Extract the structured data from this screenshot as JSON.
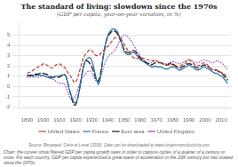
{
  "chart_data": {
    "type": "line",
    "title": "The standard of living: slowdown since the 1970s",
    "subtitle": "(GDP per capita, year-on-year variation, in %)",
    "source": "Source: Bergeaud, Cette et Lecat (2016). Data can be downloaded at www.longtermproductivity.com",
    "caption": "Chart: the curves show filtered GDP per capita growth rates in order to capture cycles of a quarter of a century or more. For each country, GDP per capita experienced a great wave of acceleration in the 20th century but has slowed since the 1970s.",
    "x": [
      1890,
      1891,
      1892,
      1893,
      1894,
      1895,
      1896,
      1897,
      1898,
      1899,
      1900,
      1901,
      1902,
      1903,
      1904,
      1905,
      1906,
      1907,
      1908,
      1909,
      1910,
      1911,
      1912,
      1913,
      1914,
      1915,
      1916,
      1917,
      1918,
      1919,
      1920,
      1921,
      1922,
      1923,
      1924,
      1925,
      1926,
      1927,
      1928,
      1929,
      1930,
      1931,
      1932,
      1933,
      1934,
      1935,
      1936,
      1937,
      1938,
      1939,
      1940,
      1941,
      1942,
      1943,
      1944,
      1945,
      1946,
      1947,
      1948,
      1949,
      1950,
      1951,
      1952,
      1953,
      1954,
      1955,
      1956,
      1957,
      1958,
      1959,
      1960,
      1961,
      1962,
      1963,
      1964,
      1965,
      1966,
      1967,
      1968,
      1969,
      1970,
      1971,
      1972,
      1973,
      1974,
      1975,
      1976,
      1977,
      1978,
      1979,
      1980,
      1981,
      1982,
      1983,
      1984,
      1985,
      1986,
      1987,
      1988,
      1989,
      1990,
      1991,
      1992,
      1993,
      1994,
      1995,
      1996,
      1997,
      1998,
      1999,
      2000,
      2001,
      2002,
      2003,
      2004,
      2005,
      2006,
      2007,
      2008,
      2009,
      2010,
      2011,
      2012,
      2013,
      2014
    ],
    "series": [
      {
        "name": "United States",
        "color": "#c0392b",
        "line_style": "dashed",
        "values": [
          1.3,
          1.35,
          1.4,
          1.5,
          1.6,
          1.7,
          1.8,
          1.9,
          2.0,
          2.1,
          2.2,
          2.2,
          2.1,
          2.0,
          1.9,
          1.8,
          1.8,
          2.0,
          2.1,
          2.2,
          2.2,
          2.1,
          2.0,
          1.9,
          1.7,
          1.4,
          1.2,
          1.0,
          0.7,
          0.4,
          0.4,
          0.7,
          1.2,
          1.8,
          2.4,
          2.8,
          3.1,
          3.3,
          3.5,
          3.6,
          3.5,
          3.3,
          3.1,
          3.0,
          3.0,
          3.1,
          3.3,
          3.5,
          3.6,
          3.8,
          3.9,
          4.1,
          4.3,
          4.5,
          4.7,
          4.8,
          5.0,
          4.9,
          4.7,
          4.4,
          4.1,
          3.8,
          3.6,
          3.3,
          3.1,
          2.9,
          2.8,
          2.7,
          2.7,
          2.8,
          2.8,
          2.8,
          2.7,
          2.7,
          2.6,
          2.6,
          2.6,
          2.5,
          2.5,
          2.6,
          2.5,
          2.4,
          2.3,
          2.3,
          2.2,
          2.1,
          2.1,
          2.1,
          2.1,
          2.2,
          2.1,
          2.0,
          1.9,
          1.9,
          1.9,
          2.0,
          2.1,
          2.2,
          2.3,
          2.5,
          2.6,
          2.5,
          2.4,
          2.2,
          2.1,
          2.0,
          2.0,
          2.1,
          2.2,
          2.3,
          2.3,
          2.2,
          2.0,
          1.8,
          1.7,
          1.6,
          1.6,
          1.6,
          1.5,
          1.4,
          1.4,
          1.3,
          1.2,
          1.0,
          0.8
        ]
      },
      {
        "name": "France",
        "color": "#2471a3",
        "line_style": "solid",
        "values": [
          1.0,
          1.0,
          1.0,
          1.0,
          1.0,
          1.1,
          1.1,
          1.1,
          1.1,
          1.1,
          1.1,
          1.0,
          0.9,
          0.9,
          0.8,
          0.8,
          0.9,
          1.0,
          1.0,
          1.0,
          1.0,
          1.1,
          1.1,
          1.2,
          1.0,
          0.5,
          -0.2,
          -0.7,
          -1.2,
          -1.6,
          -1.6,
          -1.3,
          -0.6,
          0.3,
          1.3,
          2.0,
          2.5,
          2.7,
          2.8,
          2.8,
          2.5,
          2.0,
          1.3,
          0.6,
          0.2,
          0.5,
          1.5,
          2.8,
          3.8,
          4.5,
          5.0,
          5.3,
          5.5,
          5.6,
          5.6,
          5.5,
          5.3,
          4.9,
          4.5,
          3.9,
          3.4,
          3.2,
          3.1,
          3.1,
          3.2,
          3.3,
          3.3,
          3.2,
          3.0,
          2.8,
          2.6,
          2.5,
          2.4,
          2.3,
          2.2,
          2.1,
          2.0,
          1.9,
          1.9,
          2.0,
          1.9,
          1.9,
          1.9,
          1.9,
          1.8,
          1.7,
          1.7,
          1.7,
          1.8,
          1.9,
          1.9,
          1.9,
          1.8,
          1.7,
          1.6,
          1.6,
          1.7,
          1.8,
          1.9,
          2.0,
          2.1,
          2.0,
          1.9,
          1.8,
          1.7,
          1.6,
          1.6,
          1.7,
          1.8,
          1.9,
          1.9,
          1.8,
          1.7,
          1.6,
          1.5,
          1.4,
          1.3,
          1.3,
          1.2,
          1.1,
          1.0,
          0.9,
          0.7,
          0.5,
          0.3
        ]
      },
      {
        "name": "Euro area",
        "color": "#111111",
        "line_style": "longdash",
        "values": [
          1.1,
          1.1,
          1.1,
          1.1,
          1.1,
          1.2,
          1.2,
          1.2,
          1.3,
          1.3,
          1.3,
          1.2,
          1.2,
          1.1,
          1.0,
          0.9,
          0.9,
          0.9,
          0.9,
          0.9,
          0.9,
          1.0,
          1.1,
          1.2,
          1.0,
          0.5,
          -0.2,
          -0.8,
          -1.4,
          -1.8,
          -1.8,
          -1.4,
          -0.7,
          0.2,
          1.2,
          2.0,
          2.5,
          2.5,
          2.4,
          2.2,
          1.9,
          1.5,
          1.0,
          0.6,
          0.5,
          0.9,
          1.8,
          2.8,
          3.7,
          4.4,
          4.9,
          5.1,
          5.3,
          5.4,
          5.4,
          5.3,
          5.1,
          4.8,
          4.4,
          4.0,
          3.6,
          3.4,
          3.3,
          3.3,
          3.4,
          3.5,
          3.5,
          3.4,
          3.2,
          3.0,
          2.8,
          2.6,
          2.5,
          2.4,
          2.3,
          2.2,
          2.2,
          2.1,
          2.2,
          2.3,
          2.3,
          2.3,
          2.3,
          2.3,
          2.2,
          2.1,
          2.1,
          2.1,
          2.2,
          2.3,
          2.2,
          2.1,
          2.0,
          1.9,
          1.8,
          1.8,
          1.9,
          2.0,
          2.1,
          2.2,
          2.2,
          2.2,
          2.1,
          2.0,
          1.9,
          1.8,
          1.8,
          1.9,
          2.0,
          2.1,
          2.1,
          2.0,
          1.9,
          1.8,
          1.7,
          1.6,
          1.6,
          1.6,
          1.5,
          1.4,
          1.3,
          1.2,
          1.0,
          0.8,
          0.6
        ]
      },
      {
        "name": "United Kingdom",
        "color": "#8e44ad",
        "line_style": "dotted",
        "values": [
          0.9,
          0.9,
          0.9,
          0.9,
          0.9,
          0.9,
          0.9,
          0.9,
          0.95,
          1.0,
          1.0,
          1.0,
          1.0,
          1.0,
          0.9,
          0.8,
          0.7,
          0.6,
          0.5,
          0.4,
          0.3,
          0.3,
          0.3,
          0.3,
          0.0,
          -0.5,
          -0.9,
          -1.2,
          -1.3,
          -1.2,
          -0.9,
          -0.5,
          0.0,
          0.5,
          0.8,
          1.0,
          1.2,
          1.4,
          1.5,
          1.5,
          1.3,
          1.0,
          0.7,
          0.5,
          0.5,
          0.8,
          1.2,
          1.7,
          2.2,
          2.6,
          2.9,
          3.1,
          3.2,
          3.3,
          3.5,
          3.7,
          4.0,
          4.4,
          4.7,
          4.9,
          5.0,
          5.0,
          4.9,
          4.7,
          4.5,
          4.3,
          4.0,
          3.7,
          3.4,
          3.2,
          2.9,
          2.7,
          2.5,
          2.4,
          2.3,
          2.3,
          2.3,
          2.3,
          2.4,
          2.5,
          2.5,
          2.4,
          2.4,
          2.3,
          2.3,
          2.2,
          2.2,
          2.2,
          2.3,
          2.4,
          2.4,
          2.4,
          2.3,
          2.3,
          2.2,
          2.2,
          2.3,
          2.4,
          2.5,
          2.6,
          2.6,
          2.6,
          2.5,
          2.4,
          2.3,
          2.3,
          2.3,
          2.4,
          2.5,
          2.6,
          2.6,
          2.5,
          2.5,
          2.4,
          2.3,
          2.3,
          2.4,
          2.5,
          2.5,
          2.4,
          2.3,
          2.2,
          2.0,
          1.8,
          1.6
        ]
      }
    ],
    "xlim": [
      1885,
      2016
    ],
    "xticks": [
      1890,
      1900,
      1910,
      1920,
      1930,
      1940,
      1950,
      1960,
      1970,
      1980,
      1990,
      2000,
      2010
    ],
    "ylim": [
      -2.2,
      6.2
    ],
    "yticks": [
      -2,
      -1,
      0,
      1,
      2,
      3,
      4,
      5
    ],
    "grid": "y",
    "legend": "bottom"
  }
}
